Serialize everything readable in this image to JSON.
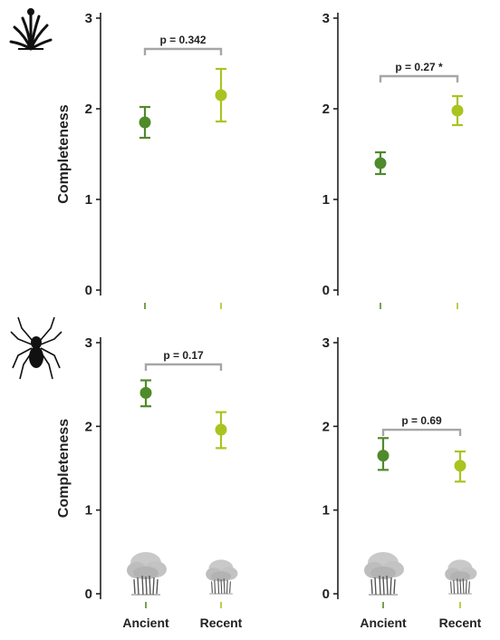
{
  "figure": {
    "y_axis_label": "Completeness",
    "icons": {
      "top_row": "plant-icon",
      "bottom_row": "spider-icon",
      "bottom_panels_x_markers": "tree-icon"
    }
  },
  "colors": {
    "ancient": "#4f8a2b",
    "recent": "#a9c420",
    "bracket": "#a6a6a6",
    "axis": "#222222"
  },
  "chart_data": [
    {
      "type": "scatter",
      "panel": "top-left",
      "categories": [
        "Ancient",
        "Recent"
      ],
      "show_x_labels": false,
      "values": [
        1.85,
        2.15
      ],
      "error_low": [
        1.68,
        1.86
      ],
      "error_high": [
        2.02,
        2.44
      ],
      "ylim": [
        0,
        3
      ],
      "yticks": [
        "0",
        "1",
        "2",
        "3"
      ],
      "ylabel": "Completeness",
      "annotation": {
        "text": "p = 0.342",
        "y": 2.66
      }
    },
    {
      "type": "scatter",
      "panel": "top-right",
      "categories": [
        "Ancient",
        "Recent"
      ],
      "show_x_labels": false,
      "values": [
        1.4,
        1.98
      ],
      "error_low": [
        1.28,
        1.82
      ],
      "error_high": [
        1.52,
        2.14
      ],
      "ylim": [
        0,
        3
      ],
      "yticks": [
        "0",
        "1",
        "2",
        "3"
      ],
      "ylabel": "",
      "annotation": {
        "text": "p = 0.27 *",
        "y": 2.36
      }
    },
    {
      "type": "scatter",
      "panel": "bottom-left",
      "categories": [
        "Ancient",
        "Recent"
      ],
      "show_x_labels": true,
      "values": [
        2.4,
        1.96
      ],
      "error_low": [
        2.24,
        1.74
      ],
      "error_high": [
        2.55,
        2.17
      ],
      "ylim": [
        0,
        3
      ],
      "yticks": [
        "0",
        "1",
        "2",
        "3"
      ],
      "ylabel": "Completeness",
      "annotation": {
        "text": "p = 0.17",
        "y": 2.74
      }
    },
    {
      "type": "scatter",
      "panel": "bottom-right",
      "categories": [
        "Ancient",
        "Recent"
      ],
      "show_x_labels": true,
      "values": [
        1.65,
        1.53
      ],
      "error_low": [
        1.48,
        1.34
      ],
      "error_high": [
        1.86,
        1.7
      ],
      "ylim": [
        0,
        3
      ],
      "yticks": [
        "0",
        "1",
        "2",
        "3"
      ],
      "ylabel": "",
      "annotation": {
        "text": "p = 0.69",
        "y": 1.96
      }
    }
  ]
}
